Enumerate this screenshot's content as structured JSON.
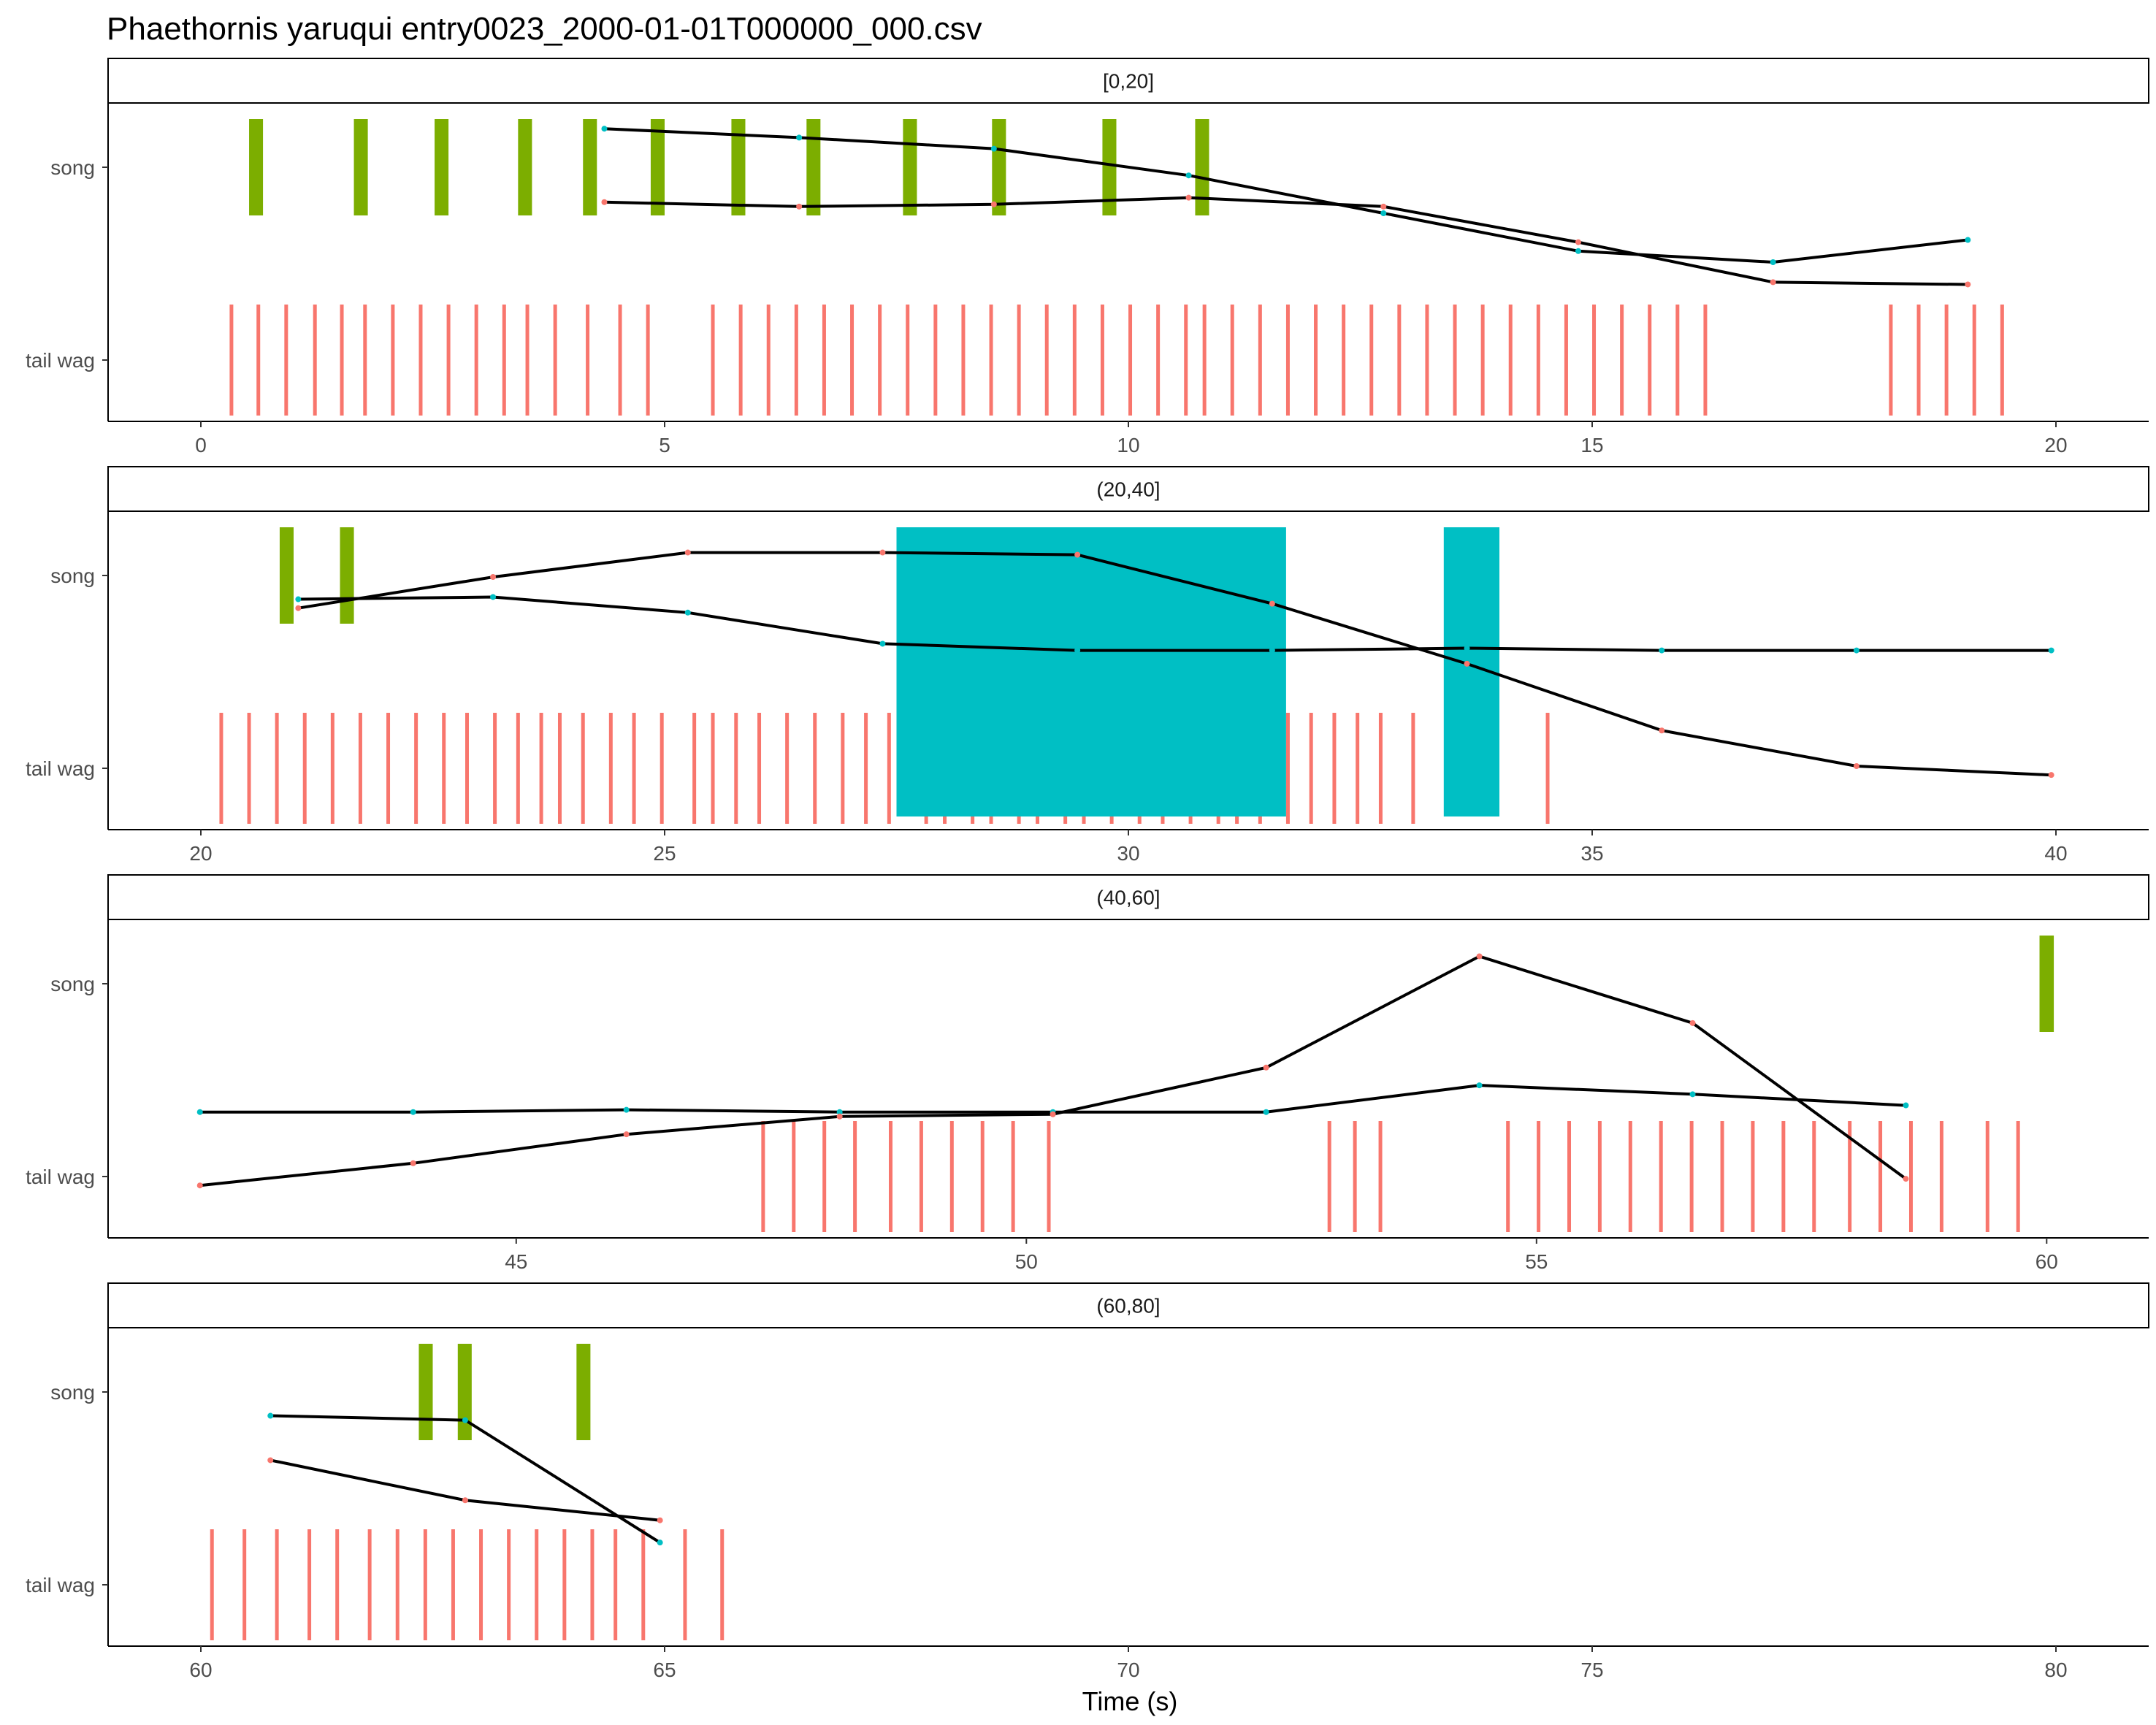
{
  "chart_data": {
    "type": "timeline",
    "title": "Phaethornis yaruqui   entry0023_2000-01-01T000000_000.csv",
    "xlabel": "Time (s)",
    "rows": [
      "song",
      "tail wag"
    ],
    "colors": {
      "song": "#7CAE00",
      "song_wide": "#00BFC4",
      "tail_wag": "#F8766D",
      "line": "#000000",
      "song_point": "#00BFC4",
      "tail_point": "#F8766D"
    },
    "panels": [
      {
        "label": "[0,20]",
        "xlim": [
          -1,
          21
        ],
        "ticks": [
          0,
          5,
          10,
          15,
          20
        ],
        "song_events": [
          [
            0.52,
            0.67
          ],
          [
            1.65,
            1.8
          ],
          [
            2.52,
            2.67
          ],
          [
            3.42,
            3.57
          ],
          [
            4.12,
            4.27
          ],
          [
            4.85,
            5.0
          ],
          [
            5.72,
            5.87
          ],
          [
            6.53,
            6.68
          ],
          [
            7.57,
            7.72
          ],
          [
            8.53,
            8.68
          ],
          [
            9.72,
            9.87
          ],
          [
            10.72,
            10.87
          ]
        ],
        "tail_wags": [
          0.33,
          0.62,
          0.92,
          1.23,
          1.52,
          1.77,
          2.07,
          2.37,
          2.67,
          2.97,
          3.27,
          3.52,
          3.82,
          4.17,
          4.52,
          4.82,
          5.52,
          5.82,
          6.12,
          6.42,
          6.72,
          7.02,
          7.32,
          7.62,
          7.92,
          8.22,
          8.52,
          8.82,
          9.12,
          9.42,
          9.72,
          10.02,
          10.32,
          10.62,
          10.82,
          11.12,
          11.42,
          11.72,
          12.02,
          12.32,
          12.62,
          12.92,
          13.22,
          13.52,
          13.82,
          14.12,
          14.42,
          14.72,
          15.02,
          15.32,
          15.62,
          15.92,
          16.22,
          18.22,
          18.52,
          18.82,
          19.12,
          19.42
        ],
        "song_curve": [
          [
            4.35,
            1.25
          ],
          [
            6.45,
            1.21
          ],
          [
            8.55,
            1.16
          ],
          [
            10.65,
            1.04
          ],
          [
            12.75,
            0.87
          ],
          [
            14.85,
            0.7
          ],
          [
            16.95,
            0.65
          ],
          [
            19.05,
            0.75
          ]
        ],
        "tail_curve": [
          [
            4.35,
            0.92
          ],
          [
            6.45,
            0.9
          ],
          [
            8.55,
            0.91
          ],
          [
            10.65,
            0.94
          ],
          [
            12.75,
            0.9
          ],
          [
            14.85,
            0.74
          ],
          [
            16.95,
            0.56
          ],
          [
            19.05,
            0.55
          ]
        ]
      },
      {
        "label": "(20,40]",
        "xlim": [
          19,
          41
        ],
        "ticks": [
          20,
          25,
          30,
          35,
          40
        ],
        "song_events": [
          [
            20.85,
            21.0
          ],
          [
            21.5,
            21.65
          ]
        ],
        "song_wide_events": [
          [
            27.5,
            31.7
          ],
          [
            33.4,
            34.0
          ]
        ],
        "tail_wags": [
          20.22,
          20.52,
          20.82,
          21.12,
          21.42,
          21.72,
          22.02,
          22.32,
          22.62,
          22.87,
          23.17,
          23.42,
          23.67,
          23.87,
          24.12,
          24.42,
          24.67,
          24.97,
          25.32,
          25.52,
          25.77,
          26.02,
          26.32,
          26.62,
          26.92,
          27.17,
          27.42,
          27.82,
          28.02,
          28.32,
          28.52,
          28.82,
          29.02,
          29.32,
          29.52,
          29.82,
          30.12,
          30.37,
          30.67,
          30.97,
          31.17,
          31.42,
          31.72,
          31.97,
          32.22,
          32.47,
          32.72,
          33.07,
          34.52
        ],
        "song_curve": [
          [
            21.05,
            0.97
          ],
          [
            23.15,
            0.98
          ],
          [
            25.25,
            0.91
          ],
          [
            27.35,
            0.77
          ],
          [
            29.45,
            0.74
          ],
          [
            31.55,
            0.74
          ],
          [
            33.65,
            0.75
          ],
          [
            35.75,
            0.74
          ],
          [
            37.85,
            0.74
          ],
          [
            39.95,
            0.74
          ]
        ],
        "tail_curve": [
          [
            21.05,
            0.93
          ],
          [
            23.15,
            1.07
          ],
          [
            25.25,
            1.18
          ],
          [
            27.35,
            1.18
          ],
          [
            29.45,
            1.17
          ],
          [
            31.55,
            0.95
          ],
          [
            33.65,
            0.68
          ],
          [
            35.75,
            0.38
          ],
          [
            37.85,
            0.22
          ],
          [
            39.95,
            0.18
          ]
        ]
      },
      {
        "label": "(40,60]",
        "xlim": [
          41,
          61
        ],
        "ticks": [
          45,
          50,
          55,
          60
        ],
        "song_events": [
          [
            59.93,
            60.07
          ]
        ],
        "tail_wags": [
          47.42,
          47.72,
          48.02,
          48.32,
          48.67,
          48.97,
          49.27,
          49.57,
          49.87,
          50.22,
          52.97,
          53.22,
          53.47,
          54.72,
          55.02,
          55.32,
          55.62,
          55.92,
          56.22,
          56.52,
          56.82,
          57.12,
          57.42,
          57.72,
          58.07,
          58.37,
          58.67,
          58.97,
          59.42,
          59.72
        ],
        "song_curve": [
          [
            41.9,
            0.5
          ],
          [
            43.99,
            0.5
          ],
          [
            46.08,
            0.51
          ],
          [
            48.17,
            0.5
          ],
          [
            50.26,
            0.5
          ],
          [
            52.35,
            0.5
          ],
          [
            54.44,
            0.62
          ],
          [
            56.53,
            0.58
          ],
          [
            58.62,
            0.53
          ]
        ],
        "tail_curve": [
          [
            41.9,
            0.17
          ],
          [
            43.99,
            0.27
          ],
          [
            46.08,
            0.4
          ],
          [
            48.17,
            0.48
          ],
          [
            50.26,
            0.49
          ],
          [
            52.35,
            0.7
          ],
          [
            54.44,
            1.2
          ],
          [
            56.53,
            0.9
          ],
          [
            58.62,
            0.2
          ]
        ]
      },
      {
        "label": "(60,80]",
        "xlim": [
          59,
          81
        ],
        "ticks": [
          60,
          65,
          70,
          75,
          80
        ],
        "song_events": [
          [
            62.35,
            62.5
          ],
          [
            62.77,
            62.92
          ],
          [
            64.05,
            64.2
          ]
        ],
        "tail_wags": [
          60.12,
          60.47,
          60.82,
          61.17,
          61.47,
          61.82,
          62.12,
          62.42,
          62.72,
          63.02,
          63.32,
          63.62,
          63.92,
          64.22,
          64.47,
          64.77,
          65.22,
          65.62
        ],
        "song_curve": [
          [
            60.75,
            0.97
          ],
          [
            62.85,
            0.95
          ],
          [
            64.95,
            0.4
          ]
        ],
        "tail_curve": [
          [
            60.75,
            0.77
          ],
          [
            62.85,
            0.59
          ],
          [
            64.95,
            0.5
          ]
        ]
      }
    ]
  }
}
